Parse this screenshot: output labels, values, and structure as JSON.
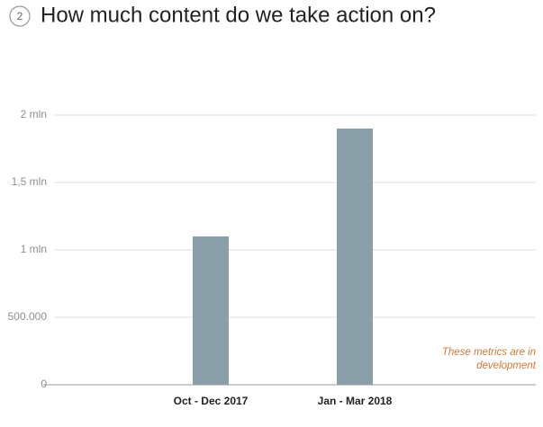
{
  "chart_data": {
    "type": "bar",
    "step": "2",
    "title": "How much content do we take action on?",
    "categories": [
      "Oct - Dec 2017",
      "Jan - Mar 2018"
    ],
    "values": [
      1100000,
      1900000
    ],
    "color": "#8b9fa9",
    "ylim": [
      0,
      2000000
    ],
    "yticks": [
      0,
      {
        "value": 500000,
        "label": "500.000"
      },
      {
        "value": 1000000,
        "label": "1 mln"
      },
      {
        "value": 1500000,
        "label": "1,5 mln"
      },
      {
        "value": 2000000,
        "label": "2 mln"
      }
    ],
    "grid": true,
    "annotation": "These metrics are in development"
  }
}
